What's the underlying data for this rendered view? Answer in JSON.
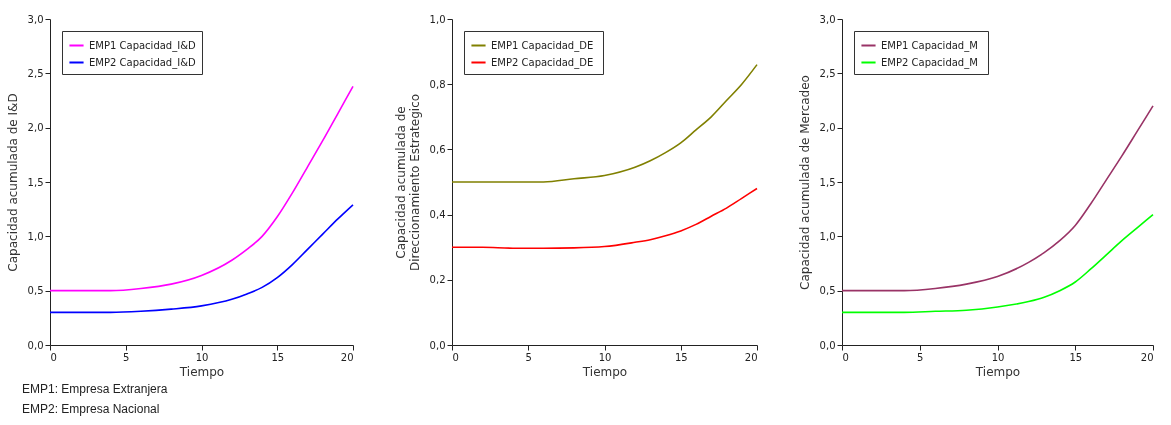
{
  "chart_data": [
    {
      "type": "line",
      "xlabel": "Tiempo",
      "ylabel": "Capacidad acumulada de I&D",
      "legend": "top left",
      "grid": false,
      "x": [
        0,
        2,
        4,
        6,
        8,
        10,
        12,
        13,
        14,
        15,
        16,
        17,
        18,
        19,
        20
      ],
      "xlim": [
        0,
        20
      ],
      "xticks": [
        0,
        5,
        10,
        15,
        20
      ],
      "ylim": [
        0,
        3
      ],
      "yticks": [
        {
          "value": 0,
          "label": "0,0"
        },
        {
          "value": 0.5,
          "label": "0,5"
        },
        {
          "value": 1,
          "label": "1,0"
        },
        {
          "value": 1.5,
          "label": "1,5"
        },
        {
          "value": 2,
          "label": "2,0"
        },
        {
          "value": 2.5,
          "label": "2,5"
        },
        {
          "value": 3,
          "label": "3,0"
        }
      ],
      "series": [
        {
          "name": "EMP1 Capacidad_I&D",
          "color": "#ff00ff",
          "values": [
            0.5,
            0.5,
            0.5,
            0.52,
            0.56,
            0.64,
            0.78,
            0.88,
            1.0,
            1.18,
            1.4,
            1.64,
            1.88,
            2.13,
            2.38
          ]
        },
        {
          "name": "EMP2 Capacidad_I&D",
          "color": "#0000ff",
          "values": [
            0.3,
            0.3,
            0.3,
            0.31,
            0.33,
            0.36,
            0.42,
            0.47,
            0.53,
            0.62,
            0.74,
            0.88,
            1.02,
            1.16,
            1.29
          ]
        }
      ],
      "annotations": [
        "EMP1: Empresa Extranjera",
        "EMP2: Empresa Nacional"
      ]
    },
    {
      "type": "line",
      "xlabel": "Tiempo",
      "ylabel": "Capacidad acumulada de Direccionamiento Estrategico",
      "legend": "top left",
      "grid": false,
      "x": [
        0,
        2,
        4,
        6,
        8,
        10,
        12,
        13,
        14,
        15,
        16,
        17,
        18,
        19,
        20
      ],
      "xlim": [
        0,
        20
      ],
      "xticks": [
        0,
        5,
        10,
        15,
        20
      ],
      "ylim": [
        0,
        1
      ],
      "yticks": [
        {
          "value": 0,
          "label": "0,0"
        },
        {
          "value": 0.2,
          "label": "0,2"
        },
        {
          "value": 0.4,
          "label": "0,4"
        },
        {
          "value": 0.6,
          "label": "0,6"
        },
        {
          "value": 0.8,
          "label": "0,8"
        },
        {
          "value": 1,
          "label": "1,0"
        }
      ],
      "series": [
        {
          "name": "EMP1 Capacidad_DE",
          "color": "#808000",
          "values": [
            0.5,
            0.5,
            0.5,
            0.5,
            0.51,
            0.52,
            0.545,
            0.565,
            0.59,
            0.62,
            0.66,
            0.7,
            0.75,
            0.8,
            0.86
          ]
        },
        {
          "name": "EMP2  Capacidad_DE",
          "color": "#ff0000",
          "values": [
            0.3,
            0.3,
            0.297,
            0.297,
            0.298,
            0.302,
            0.315,
            0.323,
            0.335,
            0.35,
            0.37,
            0.395,
            0.42,
            0.45,
            0.48
          ]
        }
      ]
    },
    {
      "type": "line",
      "xlabel": "Tiempo",
      "ylabel": "Capacidad acumulada de Mercadeo",
      "legend": "top left",
      "grid": false,
      "x": [
        0,
        2,
        4,
        6,
        8,
        10,
        12,
        13,
        14,
        15,
        16,
        17,
        18,
        19,
        20
      ],
      "xlim": [
        0,
        20
      ],
      "xticks": [
        0,
        5,
        10,
        15,
        20
      ],
      "ylim": [
        0,
        3
      ],
      "yticks": [
        {
          "value": 0,
          "label": "0,0"
        },
        {
          "value": 0.5,
          "label": "0,5"
        },
        {
          "value": 1,
          "label": "1,0"
        },
        {
          "value": 1.5,
          "label": "1,5"
        },
        {
          "value": 2,
          "label": "2,0"
        },
        {
          "value": 2.5,
          "label": "2,5"
        },
        {
          "value": 3,
          "label": "3,0"
        }
      ],
      "series": [
        {
          "name": "EMP1 Capacidad_M",
          "color": "#993366",
          "values": [
            0.5,
            0.5,
            0.5,
            0.52,
            0.56,
            0.63,
            0.76,
            0.85,
            0.96,
            1.1,
            1.3,
            1.52,
            1.74,
            1.97,
            2.2
          ]
        },
        {
          "name": "EMP2  Capacidad_M",
          "color": "#00ff00",
          "values": [
            0.3,
            0.3,
            0.3,
            0.31,
            0.32,
            0.35,
            0.4,
            0.44,
            0.5,
            0.58,
            0.7,
            0.83,
            0.96,
            1.08,
            1.2
          ]
        }
      ]
    }
  ]
}
